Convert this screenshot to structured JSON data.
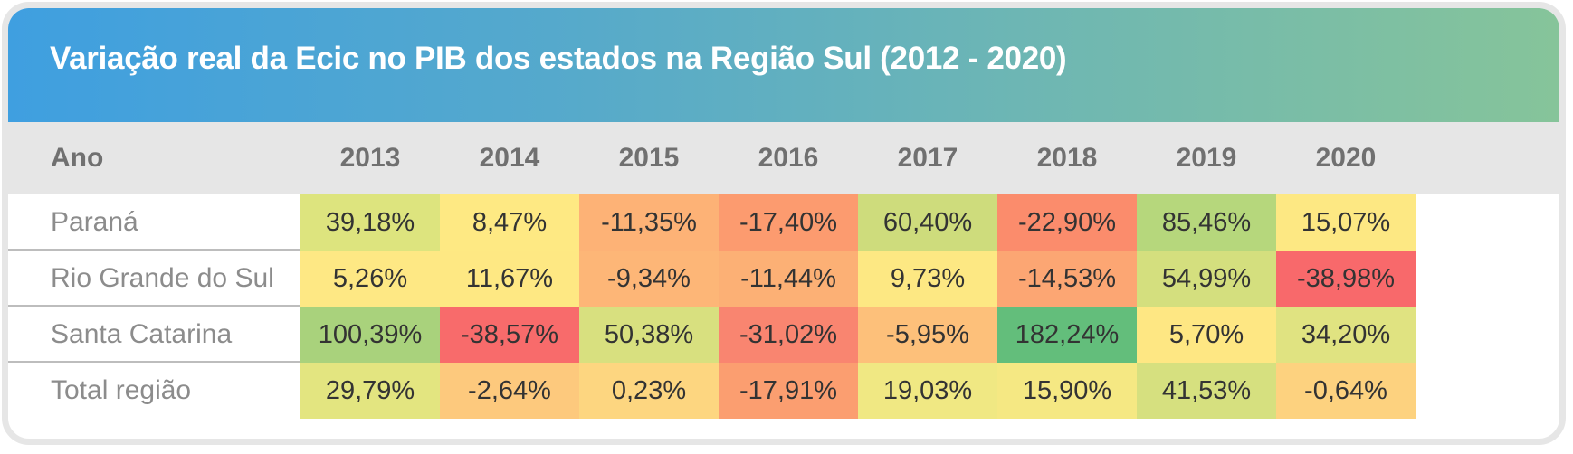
{
  "chart_data": {
    "type": "table",
    "title": "Variação real da Ecic no PIB dos estados na Região Sul (2012 - 2020)",
    "header_label": "Ano",
    "years": [
      "2013",
      "2014",
      "2015",
      "2016",
      "2017",
      "2018",
      "2019",
      "2020"
    ],
    "rows": [
      {
        "name": "Paraná",
        "values": [
          39.18,
          8.47,
          -11.35,
          -17.4,
          60.4,
          -22.9,
          85.46,
          15.07
        ],
        "labels": [
          "39,18%",
          "8,47%",
          "-11,35%",
          "-17,40%",
          "60,40%",
          "-22,90%",
          "85,46%",
          "15,07%"
        ],
        "colors": [
          "#dde47e",
          "#fee983",
          "#fdb276",
          "#fc9b6f",
          "#cedc7c",
          "#fb8c6c",
          "#b6d77c",
          "#fde883"
        ]
      },
      {
        "name": "Rio Grande do Sul",
        "values": [
          5.26,
          11.67,
          -9.34,
          -11.44,
          9.73,
          -14.53,
          54.99,
          -38.98
        ],
        "labels": [
          "5,26%",
          "11,67%",
          "-9,34%",
          "-11,44%",
          "9,73%",
          "-14,53%",
          "54,99%",
          "-38,98%"
        ],
        "colors": [
          "#fee884",
          "#fee883",
          "#fdb677",
          "#fcb075",
          "#fde883",
          "#fca673",
          "#d4df7e",
          "#f8696b"
        ]
      },
      {
        "name": "Santa Catarina",
        "values": [
          100.39,
          -38.57,
          50.38,
          -31.02,
          -5.95,
          182.24,
          5.7,
          34.2
        ],
        "labels": [
          "100,39%",
          "-38,57%",
          "50,38%",
          "-31,02%",
          "-5,95%",
          "182,24%",
          "5,70%",
          "34,20%"
        ],
        "colors": [
          "#a9d27c",
          "#f86b6b",
          "#d8e07f",
          "#f98570",
          "#fdc07a",
          "#63be7b",
          "#fee783",
          "#e0e381"
        ]
      },
      {
        "name": "Total região",
        "values": [
          29.79,
          -2.64,
          0.23,
          -17.91,
          19.03,
          15.9,
          41.53,
          -0.64
        ],
        "labels": [
          "29,79%",
          "-2,64%",
          "0,23%",
          "-17,91%",
          "19,03%",
          "15,90%",
          "41,53%",
          "-0,64%"
        ],
        "colors": [
          "#e3e580",
          "#fdc97d",
          "#fdd680",
          "#fb9e70",
          "#f0e883",
          "#f5e883",
          "#d6e07f",
          "#fdd27f"
        ]
      }
    ]
  }
}
